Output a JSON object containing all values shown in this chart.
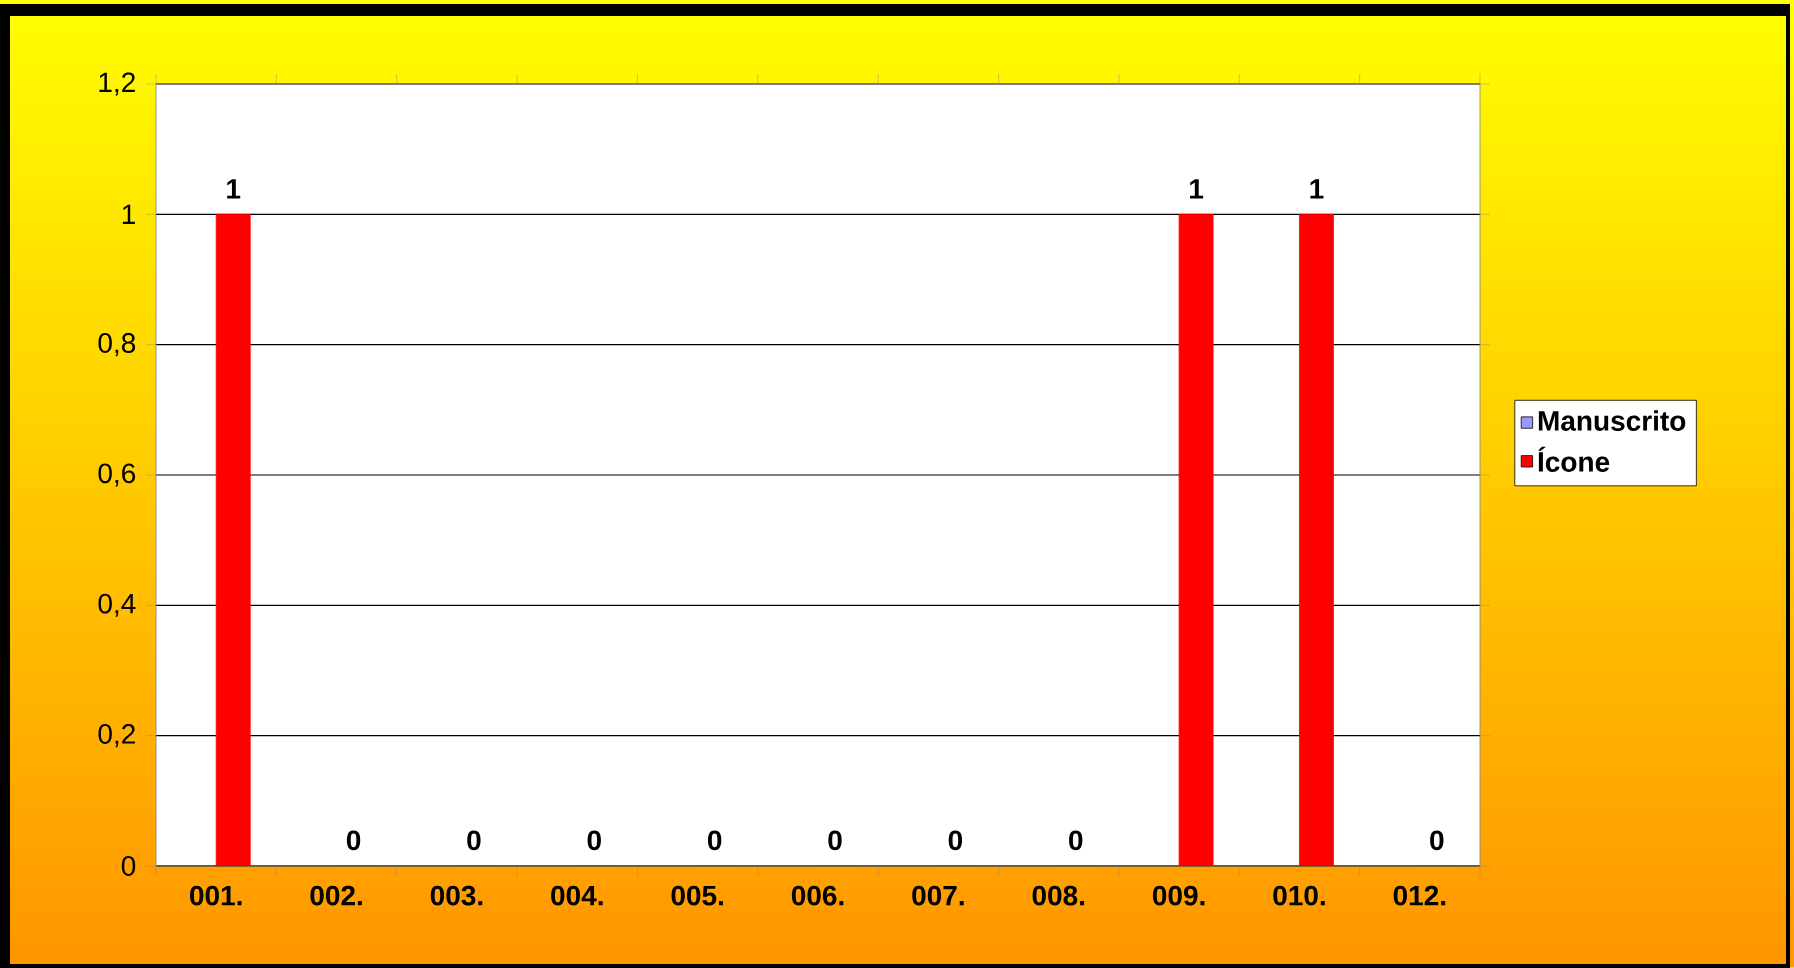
{
  "chart_data": {
    "type": "bar",
    "categories": [
      "001.",
      "002.",
      "003.",
      "004.",
      "005.",
      "006.",
      "007.",
      "008.",
      "009.",
      "010.",
      "012."
    ],
    "series": [
      {
        "name": "Manuscrito",
        "color": "#9999ff",
        "values": [
          null,
          null,
          null,
          null,
          null,
          null,
          null,
          null,
          null,
          null,
          null
        ]
      },
      {
        "name": "Ícone",
        "color": "#ff0000",
        "values": [
          1,
          0,
          0,
          0,
          0,
          0,
          0,
          0,
          1,
          1,
          0
        ]
      }
    ],
    "ylim": [
      0,
      1.2
    ],
    "yticks": [
      {
        "value": 0,
        "label": "0"
      },
      {
        "value": 0.2,
        "label": "0,2"
      },
      {
        "value": 0.4,
        "label": "0,4"
      },
      {
        "value": 0.6,
        "label": "0,6"
      },
      {
        "value": 0.8,
        "label": "0,8"
      },
      {
        "value": 1,
        "label": "1"
      },
      {
        "value": 1.2,
        "label": "1,2"
      }
    ],
    "grid": "y",
    "legend": "right",
    "data_labels": true
  }
}
